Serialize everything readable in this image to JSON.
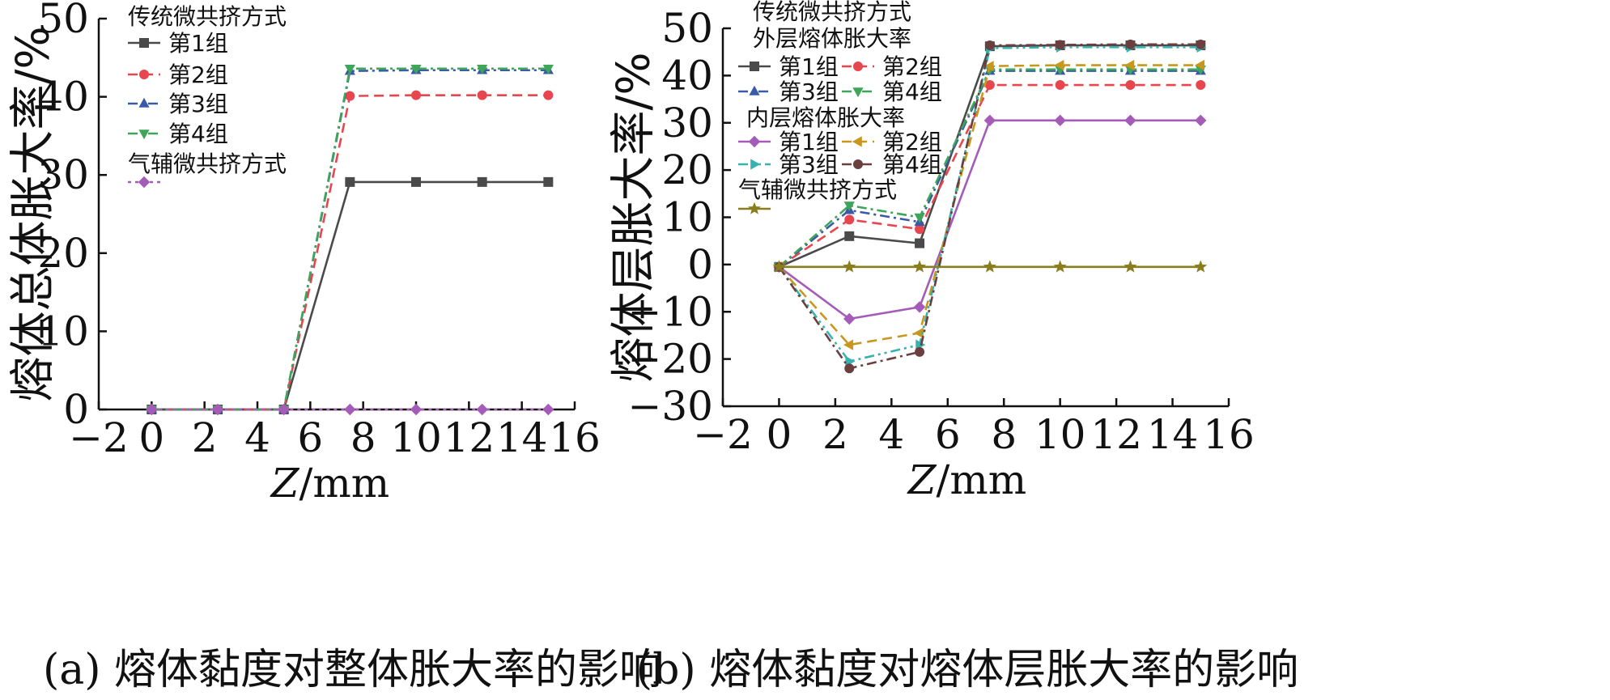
{
  "chart_data": [
    {
      "type": "line",
      "caption": "(a) 熔体黏度对整体胀大率的影响",
      "xlabel_var": "Z",
      "xlabel_unit": "/mm",
      "ylabel": "熔体总体胀大率/%",
      "xlim": [
        -2,
        16
      ],
      "ylim": [
        0,
        50
      ],
      "xticks": [
        "−2",
        "0",
        "2",
        "4",
        "6",
        "8",
        "10",
        "12",
        "14",
        "16"
      ],
      "yticks": [
        "0",
        "10",
        "20",
        "30",
        "40",
        "50"
      ],
      "legend_groups": [
        {
          "title": "传统微共挤方式",
          "entries": [
            "第1组",
            "第2组",
            "第3组",
            "第4组"
          ]
        },
        {
          "title": "气辅微共挤方式",
          "entries": [
            ""
          ]
        }
      ],
      "x": [
        0,
        2.5,
        5,
        7.5,
        10,
        12.5,
        15
      ],
      "series": [
        {
          "name": "第1组",
          "color": "#4a4a4a",
          "dash": "solid",
          "marker": "square",
          "values": [
            0,
            0,
            0,
            29.1,
            29.1,
            29.1,
            29.1
          ]
        },
        {
          "name": "第2组",
          "color": "#e8464e",
          "dash": "dash",
          "marker": "circle",
          "values": [
            0,
            0,
            0,
            40.1,
            40.2,
            40.2,
            40.2
          ]
        },
        {
          "name": "第3组",
          "color": "#3a5aa8",
          "dash": "dashdot",
          "marker": "triangle-up",
          "values": [
            0,
            0,
            0,
            43.3,
            43.4,
            43.4,
            43.4
          ]
        },
        {
          "name": "第4组",
          "color": "#3fa558",
          "dash": "dashdot",
          "marker": "triangle-down",
          "values": [
            0,
            0,
            0,
            43.6,
            43.6,
            43.6,
            43.6
          ]
        },
        {
          "name": "",
          "color": "#a45cb8",
          "dash": "dot",
          "marker": "diamond",
          "values": [
            0,
            0,
            0,
            0,
            0,
            0,
            0
          ]
        }
      ]
    },
    {
      "type": "line",
      "caption": "(b) 熔体黏度对熔体层胀大率的影响",
      "xlabel_var": "Z",
      "xlabel_unit": "/mm",
      "ylabel": "熔体层胀大率/%",
      "xlim": [
        -2,
        16
      ],
      "ylim": [
        -30,
        50
      ],
      "xticks": [
        "−2",
        "0",
        "2",
        "4",
        "6",
        "8",
        "10",
        "12",
        "14",
        "16"
      ],
      "yticks": [
        "−30",
        "−20",
        "−10",
        "0",
        "10",
        "20",
        "30",
        "40",
        "50"
      ],
      "legend_groups": [
        {
          "title": "传统微共挤方式",
          "entries": []
        },
        {
          "title": "外层熔体胀大率",
          "entries": [
            "第1组",
            "第2组",
            "第3组",
            "第4组"
          ]
        },
        {
          "title": "内层熔体胀大率",
          "entries": [
            "第1组",
            "第2组",
            "第3组",
            "第4组"
          ]
        },
        {
          "title": "气辅微共挤方式",
          "entries": [
            ""
          ]
        }
      ],
      "x": [
        0,
        2.5,
        5,
        7.5,
        10,
        12.5,
        15
      ],
      "series": [
        {
          "name": "外层熔体胀大率 第1组",
          "color": "#4a4a4a",
          "dash": "solid",
          "marker": "square",
          "values": [
            -0.5,
            6.0,
            4.5,
            46.2,
            46.4,
            46.4,
            46.4
          ]
        },
        {
          "name": "外层熔体胀大率 第2组",
          "color": "#e8464e",
          "dash": "dash",
          "marker": "circle",
          "values": [
            -0.5,
            9.5,
            7.5,
            38.0,
            38.0,
            38.0,
            38.0
          ]
        },
        {
          "name": "外层熔体胀大率 第3组",
          "color": "#3a5aa8",
          "dash": "dashdot",
          "marker": "triangle-up",
          "values": [
            -0.5,
            11.5,
            9.0,
            41.0,
            41.0,
            41.0,
            41.0
          ]
        },
        {
          "name": "外层熔体胀大率 第4组",
          "color": "#3fa558",
          "dash": "dashdot",
          "marker": "triangle-down",
          "values": [
            -0.5,
            12.5,
            10.0,
            41.3,
            41.3,
            41.3,
            41.3
          ]
        },
        {
          "name": "内层熔体胀大率 第1组",
          "color": "#a45cb8",
          "dash": "solid",
          "marker": "diamond",
          "values": [
            -0.5,
            -11.5,
            -9.0,
            30.5,
            30.5,
            30.5,
            30.5
          ]
        },
        {
          "name": "内层熔体胀大率 第2组",
          "color": "#c9961e",
          "dash": "dash",
          "marker": "triangle-left",
          "values": [
            -0.5,
            -17.0,
            -14.5,
            42.0,
            42.2,
            42.2,
            42.2
          ]
        },
        {
          "name": "内层熔体胀大率 第3组",
          "color": "#36b2b0",
          "dash": "dashdotdot",
          "marker": "triangle-right",
          "values": [
            -0.5,
            -20.5,
            -17.0,
            45.8,
            46.0,
            46.0,
            46.0
          ]
        },
        {
          "name": "内层熔体胀大率 第4组",
          "color": "#6b3f3f",
          "dash": "dashdot",
          "marker": "circle",
          "values": [
            -0.5,
            -22.0,
            -18.5,
            46.4,
            46.5,
            46.6,
            46.6
          ]
        },
        {
          "name": "",
          "color": "#8a7d1e",
          "dash": "solid",
          "marker": "star",
          "values": [
            -0.5,
            -0.5,
            -0.5,
            -0.5,
            -0.5,
            -0.5,
            -0.5
          ]
        }
      ]
    }
  ]
}
